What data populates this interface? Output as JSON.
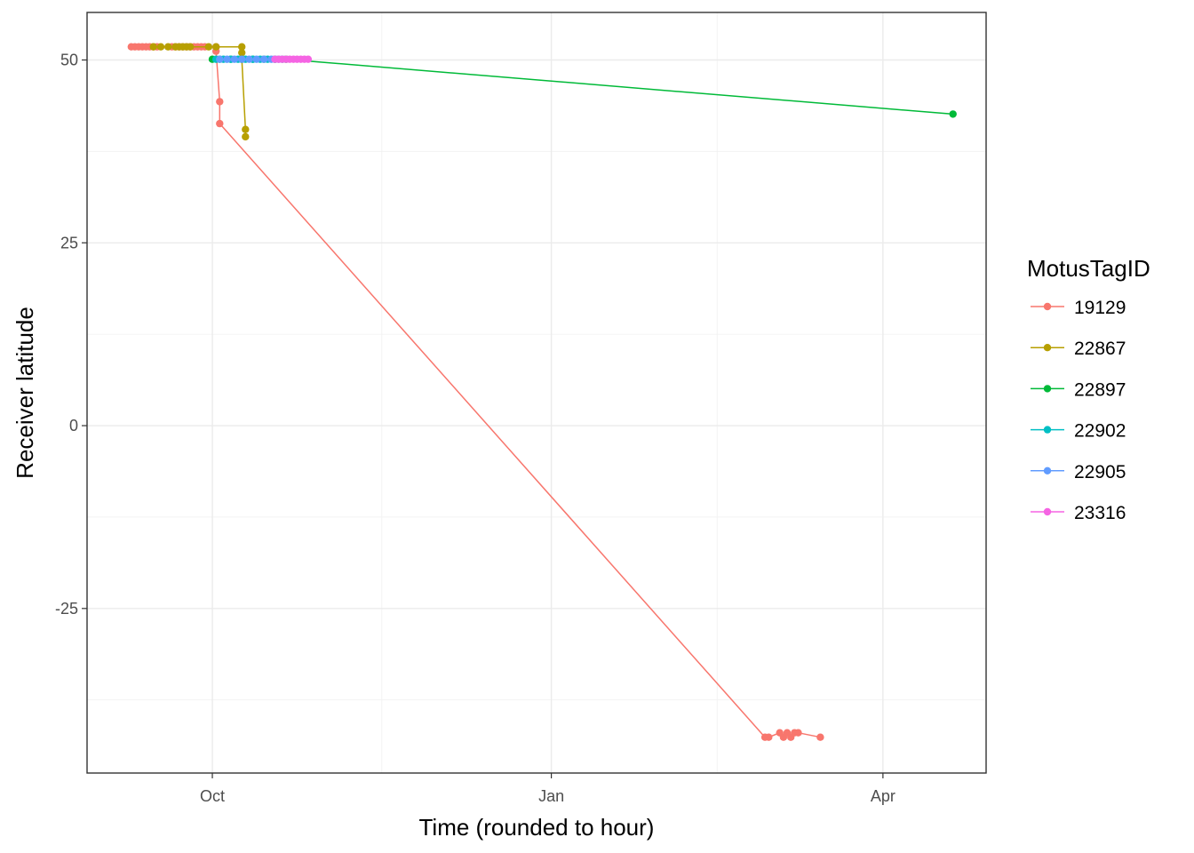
{
  "chart_data": {
    "type": "line",
    "title": "",
    "xlabel": "Time (rounded to hour)",
    "ylabel": "Receiver latitude",
    "x_axis": {
      "ticks": [
        "2016-10-01",
        "2017-01-01",
        "2017-04-01"
      ],
      "tick_labels": [
        "Oct",
        "Jan",
        "Apr"
      ],
      "xlim": [
        "2016-08-28",
        "2017-04-29"
      ]
    },
    "y_axis": {
      "ticks": [
        50,
        25,
        0,
        -25
      ],
      "tick_labels": [
        "50",
        "25",
        "0",
        "-25"
      ],
      "ylim": [
        -47.5,
        56.5
      ]
    },
    "grid": true,
    "legend": {
      "title": "MotusTagID",
      "position": "right"
    },
    "series": [
      {
        "name": "19129",
        "color": "#F8766D",
        "points": [
          [
            "2016-09-09",
            51.8
          ],
          [
            "2016-09-10",
            51.8
          ],
          [
            "2016-09-11",
            51.8
          ],
          [
            "2016-09-12",
            51.8
          ],
          [
            "2016-09-13",
            51.8
          ],
          [
            "2016-09-14",
            51.8
          ],
          [
            "2016-09-15",
            51.8
          ],
          [
            "2016-09-16",
            51.8
          ],
          [
            "2016-09-20",
            51.8
          ],
          [
            "2016-09-21",
            51.8
          ],
          [
            "2016-09-22",
            51.8
          ],
          [
            "2016-09-23",
            51.8
          ],
          [
            "2016-09-24",
            51.8
          ],
          [
            "2016-09-25",
            51.8
          ],
          [
            "2016-09-26",
            51.8
          ],
          [
            "2016-09-27",
            51.8
          ],
          [
            "2016-09-28",
            51.8
          ],
          [
            "2016-09-29",
            51.8
          ],
          [
            "2016-10-02",
            51.8
          ],
          [
            "2016-10-02",
            51.2
          ],
          [
            "2016-10-03",
            44.3
          ],
          [
            "2016-10-03",
            41.3
          ],
          [
            "2017-02-28",
            -42.6
          ],
          [
            "2017-03-01",
            -42.6
          ],
          [
            "2017-03-04",
            -42.0
          ],
          [
            "2017-03-05",
            -42.6
          ],
          [
            "2017-03-06",
            -42.0
          ],
          [
            "2017-03-07",
            -42.6
          ],
          [
            "2017-03-08",
            -42.0
          ],
          [
            "2017-03-09",
            -42.0
          ],
          [
            "2017-03-15",
            -42.6
          ]
        ]
      },
      {
        "name": "22867",
        "color": "#B79F00",
        "points": [
          [
            "2016-09-15",
            51.8
          ],
          [
            "2016-09-17",
            51.8
          ],
          [
            "2016-09-19",
            51.8
          ],
          [
            "2016-09-21",
            51.8
          ],
          [
            "2016-09-22",
            51.8
          ],
          [
            "2016-09-23",
            51.8
          ],
          [
            "2016-09-24",
            51.8
          ],
          [
            "2016-09-25",
            51.8
          ],
          [
            "2016-09-30",
            51.8
          ],
          [
            "2016-10-02",
            51.8
          ],
          [
            "2016-10-09",
            51.8
          ],
          [
            "2016-10-09",
            51.0
          ],
          [
            "2016-10-09",
            50.1
          ],
          [
            "2016-10-10",
            40.5
          ],
          [
            "2016-10-10",
            39.5
          ]
        ]
      },
      {
        "name": "22897",
        "color": "#00BA38",
        "points": [
          [
            "2016-10-01",
            50.1
          ],
          [
            "2016-10-03",
            50.1
          ],
          [
            "2016-10-06",
            50.1
          ],
          [
            "2016-10-09",
            50.1
          ],
          [
            "2016-10-12",
            50.1
          ],
          [
            "2016-10-15",
            50.1
          ],
          [
            "2016-10-18",
            50.1
          ],
          [
            "2016-10-21",
            50.1
          ],
          [
            "2017-04-20",
            42.6
          ]
        ]
      },
      {
        "name": "22902",
        "color": "#00BFC4",
        "points": [
          [
            "2016-10-02",
            50.1
          ],
          [
            "2016-10-04",
            50.1
          ],
          [
            "2016-10-06",
            50.1
          ],
          [
            "2016-10-08",
            50.1
          ],
          [
            "2016-10-10",
            50.1
          ],
          [
            "2016-10-12",
            50.1
          ],
          [
            "2016-10-14",
            50.1
          ],
          [
            "2016-10-16",
            50.1
          ],
          [
            "2016-10-18",
            50.1
          ],
          [
            "2016-10-20",
            50.1
          ]
        ]
      },
      {
        "name": "22905",
        "color": "#619CFF",
        "points": [
          [
            "2016-10-03",
            50.1
          ],
          [
            "2016-10-05",
            50.1
          ],
          [
            "2016-10-07",
            50.1
          ],
          [
            "2016-10-09",
            50.1
          ],
          [
            "2016-10-11",
            50.1
          ],
          [
            "2016-10-13",
            50.1
          ],
          [
            "2016-10-15",
            50.1
          ],
          [
            "2016-10-17",
            50.1
          ],
          [
            "2016-10-19",
            50.1
          ]
        ]
      },
      {
        "name": "23316",
        "color": "#F564E3",
        "points": [
          [
            "2016-10-18",
            50.1
          ],
          [
            "2016-10-19",
            50.1
          ],
          [
            "2016-10-20",
            50.1
          ],
          [
            "2016-10-21",
            50.1
          ],
          [
            "2016-10-22",
            50.1
          ],
          [
            "2016-10-23",
            50.1
          ],
          [
            "2016-10-24",
            50.1
          ],
          [
            "2016-10-25",
            50.1
          ],
          [
            "2016-10-26",
            50.1
          ],
          [
            "2016-10-27",
            50.1
          ]
        ]
      }
    ]
  }
}
